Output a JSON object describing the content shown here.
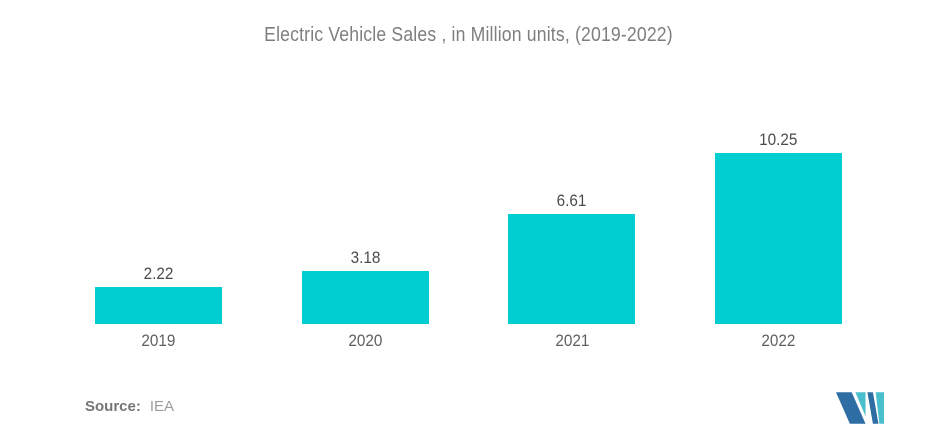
{
  "chart_data": {
    "type": "bar",
    "title": "Electric Vehicle Sales , in Million units, (2019-2022)",
    "categories": [
      "2019",
      "2020",
      "2021",
      "2022"
    ],
    "values": [
      2.22,
      3.18,
      6.61,
      10.25
    ],
    "value_labels": [
      "2.22",
      "3.18",
      "6.61",
      "10.25"
    ],
    "xlabel": "",
    "ylabel": "",
    "ylim": [
      0,
      10.25
    ],
    "grid": false,
    "legend": false,
    "bar_color": "#00CED1",
    "background_color": "#FFFFFF",
    "title_color": "#7E7E7E",
    "value_label_color": "#4B4B4B",
    "category_label_color": "#606060"
  },
  "source": {
    "label": "Source:",
    "value": "IEA"
  },
  "logo": {
    "name": "Mordor Intelligence",
    "dark_color": "#2F6EA4",
    "teal_color": "#49BECD"
  }
}
